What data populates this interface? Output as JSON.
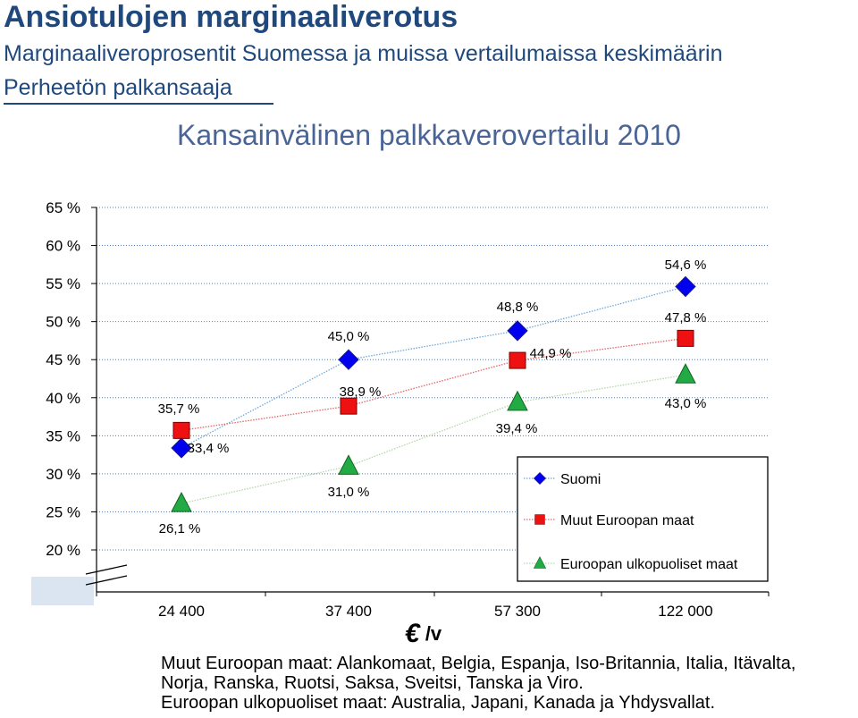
{
  "header": {
    "title": "Ansiotulojen marginaaliverotus",
    "subtitle": "Marginaaliveroprosentit Suomessa ja muissa vertailumaissa keskimäärin",
    "audience": "Perheetön palkansaaja"
  },
  "chart_data": {
    "type": "line",
    "title": "Kansainvälinen palkkaverovertailu 2010",
    "xlabel": "€ /v",
    "ylabel": "",
    "categories": [
      "24 400",
      "37 400",
      "57 300",
      "122 000"
    ],
    "yticks": [
      "65 %",
      "60 %",
      "55 %",
      "50 %",
      "45 %",
      "40 %",
      "35 %",
      "30 %",
      "25 %",
      "20 %"
    ],
    "ylim": [
      20,
      65
    ],
    "axis_break": true,
    "grid": true,
    "legend_position": "bottom-right",
    "series": [
      {
        "name": "Suomi",
        "marker": "diamond",
        "color": "#0000ee",
        "values": [
          33.4,
          45.0,
          48.8,
          54.6
        ],
        "labels": [
          "33,4 %",
          "45,0 %",
          "48,8 %",
          "54,6 %"
        ]
      },
      {
        "name": "Muut Euroopan maat",
        "marker": "square",
        "color": "#ee1111",
        "values": [
          35.7,
          38.9,
          44.9,
          47.8
        ],
        "labels": [
          "35,7 %",
          "38,9 %",
          "44,9 %",
          "47,8 %"
        ]
      },
      {
        "name": "Euroopan ulkopuoliset maat",
        "marker": "triangle",
        "color": "#22aa44",
        "values": [
          26.1,
          31.0,
          39.4,
          43.0
        ],
        "labels": [
          "26,1 %",
          "31,0 %",
          "39,4 %",
          "43,0 %"
        ]
      }
    ]
  },
  "unit": {
    "symbol": "€",
    "suffix": "/v"
  },
  "footnotes": [
    "Muut Euroopan maat: Alankomaat, Belgia, Espanja, Iso-Britannia, Italia, Itävalta,",
    "Norja, Ranska, Ruotsi, Saksa, Sveitsi, Tanska ja Viro.",
    "Euroopan ulkopuoliset maat: Australia, Japani, Kanada ja Yhdysvallat."
  ]
}
